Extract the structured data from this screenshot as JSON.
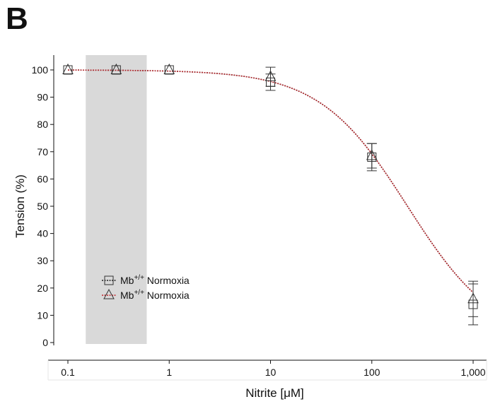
{
  "panel_label": "B",
  "colors": {
    "series1": "#222222",
    "series2": "#c0282d",
    "shade": "#d9d9d9",
    "axis": "#111111"
  },
  "chart_data": {
    "type": "scatter",
    "title": "",
    "xlabel": "Nitrite [μM]",
    "ylabel": "Tension (%)",
    "x_scale": "log",
    "xlim": [
      0.1,
      1000
    ],
    "ylim": [
      0,
      100
    ],
    "x_ticks": [
      0.1,
      1,
      10,
      100,
      1000
    ],
    "x_tick_labels": [
      "0.1",
      "1",
      "10",
      "100",
      "1,000"
    ],
    "y_ticks": [
      0,
      10,
      20,
      30,
      40,
      50,
      60,
      70,
      80,
      90,
      100
    ],
    "y_tick_labels": [
      "0",
      "10",
      "20",
      "30",
      "40",
      "50",
      "60",
      "70",
      "80",
      "90",
      "100"
    ],
    "shaded_region_x": [
      0.15,
      0.6
    ],
    "grid": false,
    "legend_position": "lower-left",
    "series": [
      {
        "name_base": "Mb",
        "name_sup": "+/+",
        "name_rest": " Normoxia",
        "marker": "square",
        "line_style": "dotted",
        "color": "#222222",
        "points": [
          {
            "x": 0.1,
            "y": 100,
            "err": 0
          },
          {
            "x": 0.3,
            "y": 100,
            "err": 0
          },
          {
            "x": 1,
            "y": 100,
            "err": 0
          },
          {
            "x": 10,
            "y": 95.5,
            "err": 3
          },
          {
            "x": 100,
            "y": 68,
            "err": 5
          },
          {
            "x": 1000,
            "y": 14,
            "err": 7.5
          }
        ]
      },
      {
        "name_base": "Mb",
        "name_sup": "+/+",
        "name_rest": " Normoxia",
        "marker": "triangle",
        "line_style": "dotted",
        "color": "#c0282d",
        "points": [
          {
            "x": 0.1,
            "y": 100,
            "err": 0
          },
          {
            "x": 0.3,
            "y": 100,
            "err": 0
          },
          {
            "x": 1,
            "y": 100,
            "err": 0
          },
          {
            "x": 10,
            "y": 97.5,
            "err": 3.5
          },
          {
            "x": 100,
            "y": 68.5,
            "err": 4.5
          },
          {
            "x": 1000,
            "y": 16,
            "err": 6.5
          }
        ]
      }
    ],
    "fit_curve": {
      "top": 100,
      "bottom": 0,
      "ic50": 225,
      "hill": 1.0
    }
  }
}
